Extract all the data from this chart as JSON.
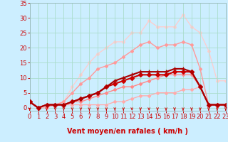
{
  "xlabel": "Vent moyen/en rafales ( km/h )",
  "bg_color": "#cceeff",
  "grid_color": "#aaddcc",
  "xmin": 0,
  "xmax": 23,
  "ymin": -1,
  "ymax": 35,
  "yticks": [
    0,
    5,
    10,
    15,
    20,
    25,
    30,
    35
  ],
  "xticks": [
    0,
    1,
    2,
    3,
    4,
    5,
    6,
    7,
    8,
    9,
    10,
    11,
    12,
    13,
    14,
    15,
    16,
    17,
    18,
    19,
    20,
    21,
    22,
    23
  ],
  "series": [
    {
      "x": [
        0,
        1,
        2,
        3,
        4,
        5,
        6,
        7,
        8,
        9,
        10,
        11,
        12,
        13,
        14,
        15,
        16,
        17,
        18,
        19,
        20,
        21,
        22,
        23
      ],
      "y": [
        2,
        0,
        0,
        1,
        1,
        1,
        1,
        1,
        1,
        1,
        2,
        2,
        3,
        4,
        4,
        5,
        5,
        5,
        6,
        6,
        7,
        1,
        1,
        1
      ],
      "color": "#ffaaaa",
      "lw": 0.9,
      "marker": "D",
      "ms": 2,
      "zorder": 2
    },
    {
      "x": [
        0,
        1,
        2,
        3,
        4,
        5,
        6,
        7,
        8,
        9,
        10,
        11,
        12,
        13,
        14,
        15,
        16,
        17,
        18,
        19,
        20,
        21,
        22,
        23
      ],
      "y": [
        2,
        0,
        1,
        1,
        1,
        2,
        2,
        3,
        4,
        5,
        6,
        7,
        7,
        8,
        9,
        10,
        11,
        11,
        11,
        11,
        7,
        1,
        1,
        1
      ],
      "color": "#ff8888",
      "lw": 1.0,
      "marker": "D",
      "ms": 2,
      "zorder": 2
    },
    {
      "x": [
        0,
        1,
        2,
        3,
        4,
        5,
        6,
        7,
        8,
        9,
        10,
        11,
        12,
        13,
        14,
        15,
        16,
        17,
        18,
        19,
        20,
        21,
        22,
        23
      ],
      "y": [
        2,
        0,
        1,
        1,
        1,
        2,
        3,
        4,
        5,
        7,
        8,
        9,
        10,
        11,
        11,
        11,
        11,
        12,
        12,
        12,
        7,
        1,
        1,
        1
      ],
      "color": "#cc0000",
      "lw": 1.5,
      "marker": "D",
      "ms": 3,
      "zorder": 4
    },
    {
      "x": [
        0,
        1,
        2,
        3,
        4,
        5,
        6,
        7,
        8,
        9,
        10,
        11,
        12,
        13,
        14,
        15,
        16,
        17,
        18,
        19,
        20,
        21,
        22,
        23
      ],
      "y": [
        2,
        0,
        1,
        1,
        1,
        2,
        3,
        4,
        5,
        7,
        9,
        10,
        11,
        12,
        12,
        12,
        12,
        13,
        13,
        12,
        7,
        1,
        1,
        1
      ],
      "color": "#aa0000",
      "lw": 1.5,
      "marker": "+",
      "ms": 4,
      "zorder": 4
    },
    {
      "x": [
        0,
        1,
        2,
        3,
        4,
        5,
        6,
        7,
        8,
        9,
        10,
        11,
        12,
        13,
        14,
        15,
        16,
        17,
        18,
        19,
        20,
        21,
        22,
        23
      ],
      "y": [
        2,
        0,
        1,
        1,
        2,
        5,
        8,
        10,
        13,
        14,
        15,
        17,
        19,
        21,
        22,
        20,
        21,
        21,
        22,
        21,
        13,
        1,
        1,
        1
      ],
      "color": "#ff9999",
      "lw": 1.0,
      "marker": "D",
      "ms": 2,
      "zorder": 3
    },
    {
      "x": [
        0,
        1,
        2,
        3,
        4,
        5,
        6,
        7,
        8,
        9,
        10,
        11,
        12,
        13,
        14,
        15,
        16,
        17,
        18,
        19,
        20,
        21,
        22,
        23
      ],
      "y": [
        2,
        0,
        1,
        1,
        2,
        7,
        11,
        15,
        18,
        20,
        22,
        22,
        25,
        25,
        29,
        27,
        27,
        27,
        31,
        27,
        25,
        19,
        9,
        9
      ],
      "color": "#ffcccc",
      "lw": 0.9,
      "marker": "D",
      "ms": 2,
      "zorder": 1
    }
  ],
  "arrow_color": "#cc0000",
  "xlabel_fontsize": 7,
  "tick_fontsize": 6,
  "tick_color": "#cc0000"
}
